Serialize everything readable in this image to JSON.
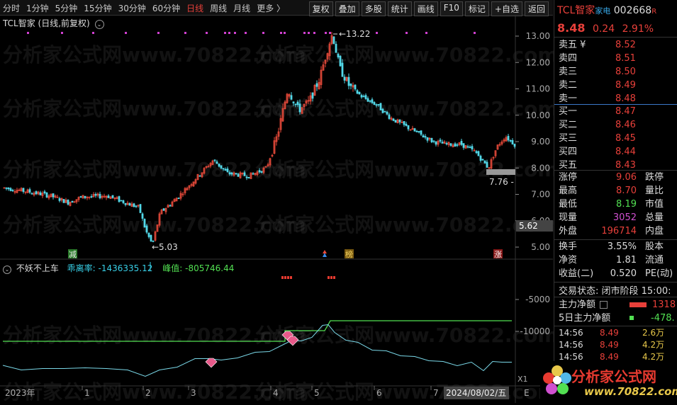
{
  "toolbar": {
    "periods": [
      "分时",
      "1分钟",
      "5分钟",
      "15分钟",
      "30分钟",
      "60分钟",
      "日线",
      "周线",
      "月线",
      "更多 〉"
    ],
    "active_period": 6,
    "buttons": [
      "复权",
      "叠加",
      "多股",
      "统计",
      "画线",
      "F10",
      "标记",
      "+自选",
      "返回"
    ]
  },
  "main_chart": {
    "title": "TCL智家 (日线,前复权)",
    "price_ticks": [
      "13.00",
      "12.00",
      "11.00",
      "10.00",
      "9.00",
      "8.00",
      "7.00",
      "6.00",
      "5.00"
    ],
    "high_label": "13.22",
    "low_label": "5.03",
    "recent_low_label": "7.76",
    "current_price_box": "5.62",
    "markers": {
      "jian": "减",
      "bang": "榜",
      "zhang": "涨"
    }
  },
  "indicator": {
    "name": "不妖不上车",
    "label_a": "乖离率:",
    "value_a": "-1436335.12",
    "label_b": "峰值:",
    "value_b": "-805746.44",
    "ticks": [
      "-5000",
      "-10000"
    ],
    "x_label": "X1"
  },
  "xaxis": {
    "labels": [
      "2023年",
      "1",
      "2",
      "3",
      "4",
      "5",
      "6",
      "7"
    ],
    "date_box": "2024/08/02/五",
    "end_label": "E"
  },
  "watermark": "分析家公式网www.70822.com",
  "right_panel": {
    "name": "TCL智家",
    "tag": "家电",
    "code": "002668",
    "r_badge": "R",
    "price": "8.48",
    "change": "0.24",
    "change_pct": "2.91%",
    "asks": [
      {
        "label": "卖五 ¥",
        "price": "8.52"
      },
      {
        "label": "卖四",
        "price": "8.51"
      },
      {
        "label": "卖三",
        "price": "8.50"
      },
      {
        "label": "卖二",
        "price": "8.49"
      },
      {
        "label": "卖一",
        "price": "8.48"
      }
    ],
    "bids": [
      {
        "label": "买一",
        "price": "8.47"
      },
      {
        "label": "买二",
        "price": "8.46"
      },
      {
        "label": "买三",
        "price": "8.45"
      },
      {
        "label": "买四",
        "price": "8.44"
      },
      {
        "label": "买五",
        "price": "8.43"
      }
    ],
    "stats": [
      {
        "l": "涨停",
        "v": "9.06",
        "c": "#e8403a",
        "l2": "跌停"
      },
      {
        "l": "最高",
        "v": "8.70",
        "c": "#e8403a",
        "l2": "量比"
      },
      {
        "l": "最低",
        "v": "8.19",
        "c": "#52e052",
        "l2": "市值"
      },
      {
        "l": "现量",
        "v": "3052",
        "c": "#d050d0",
        "l2": "总量"
      },
      {
        "l": "外盘",
        "v": "196714",
        "c": "#e8403a",
        "l2": "内盘"
      }
    ],
    "stats2": [
      {
        "l": "换手",
        "v": "3.55%",
        "c": "#ddd",
        "l2": "股本"
      },
      {
        "l": "净资",
        "v": "1.81",
        "c": "#ddd",
        "l2": "流通"
      },
      {
        "l": "收益(二)",
        "v": "0.520",
        "c": "#ddd",
        "l2": "PE(动)"
      }
    ],
    "trade_state": "交易状态: 闭市阶段 15:00:",
    "main_flow": {
      "label": "主力净额",
      "value": "1318"
    },
    "main_flow5": {
      "label": "5日主力净额",
      "value": "-478."
    },
    "ticks": [
      {
        "t": "14:56",
        "p": "8.49",
        "q": "2.6万"
      },
      {
        "t": "14:56",
        "p": "8.49",
        "q": "4.2万"
      },
      {
        "t": "14:56",
        "p": "8.49",
        "q": "4.2万"
      }
    ]
  },
  "logo": {
    "title": "分析家公式网",
    "url": "www.70822.com"
  }
}
